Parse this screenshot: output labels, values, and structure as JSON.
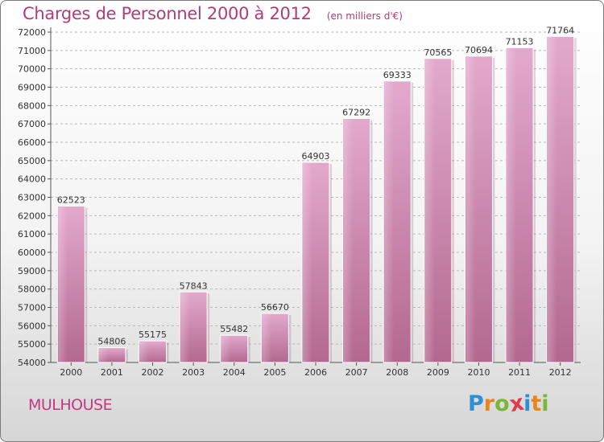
{
  "chart_data": {
    "type": "bar",
    "title": "Charges de Personnel 2000 à 2012",
    "subtitle": "(en milliers d'€)",
    "xlabel": "",
    "ylabel": "",
    "categories": [
      "2000",
      "2001",
      "2002",
      "2003",
      "2004",
      "2005",
      "2006",
      "2007",
      "2008",
      "2009",
      "2010",
      "2011",
      "2012"
    ],
    "values": [
      62523,
      54806,
      55175,
      57843,
      55482,
      56670,
      64903,
      67292,
      69333,
      70565,
      70694,
      71153,
      71764
    ],
    "ylim": [
      54000,
      72000
    ],
    "yticks": [
      54000,
      55000,
      56000,
      57000,
      58000,
      59000,
      60000,
      61000,
      62000,
      63000,
      64000,
      65000,
      66000,
      67000,
      68000,
      69000,
      70000,
      71000,
      72000
    ],
    "grid": "horizontal",
    "bar_color": "#cf8cb5"
  },
  "footer": {
    "city": "MULHOUSE",
    "brand_letters": [
      {
        "char": "P",
        "color": "#2d8fd5"
      },
      {
        "char": "r",
        "color": "#e8851f"
      },
      {
        "char": "o",
        "color": "#7ab739"
      },
      {
        "char": "x",
        "color": "#e03c4a"
      },
      {
        "char": "i",
        "color": "#2d8fd5"
      },
      {
        "char": "t",
        "color": "#e8851f"
      },
      {
        "char": "i",
        "color": "#7ab739"
      }
    ]
  }
}
